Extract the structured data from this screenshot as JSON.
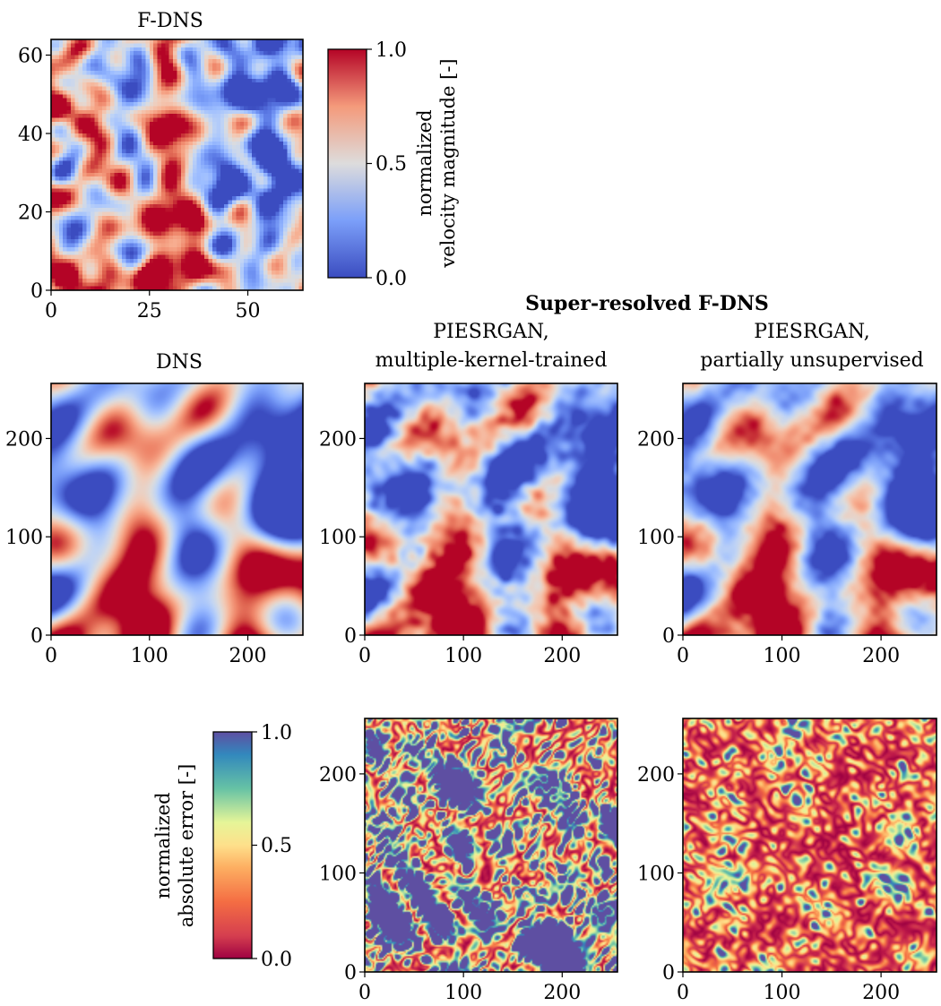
{
  "chart_data": [
    {
      "type": "heatmap",
      "id": "fdns",
      "title": "F-DNS",
      "grid_size": 64,
      "xlim": [
        0,
        64
      ],
      "ylim": [
        0,
        64
      ],
      "xticks": [
        0,
        25,
        50
      ],
      "yticks": [
        0,
        20,
        40,
        60
      ],
      "colormap": "coolwarm",
      "value_range": [
        0,
        1
      ]
    },
    {
      "type": "heatmap",
      "id": "dns",
      "title": "DNS",
      "grid_size": 256,
      "xlim": [
        0,
        256
      ],
      "ylim": [
        0,
        256
      ],
      "xticks": [
        0,
        100,
        200
      ],
      "yticks": [
        0,
        100,
        200
      ],
      "colormap": "coolwarm",
      "value_range": [
        0,
        1
      ]
    },
    {
      "type": "heatmap",
      "id": "sr_multi",
      "title_lines": [
        "PIESRGAN,",
        "multiple-kernel-trained"
      ],
      "grid_size": 256,
      "xlim": [
        0,
        256
      ],
      "ylim": [
        0,
        256
      ],
      "xticks": [
        0,
        100,
        200
      ],
      "yticks": [
        0,
        100,
        200
      ],
      "colormap": "coolwarm",
      "value_range": [
        0,
        1
      ]
    },
    {
      "type": "heatmap",
      "id": "sr_partial",
      "title_lines": [
        "PIESRGAN,",
        "partially unsupervised"
      ],
      "grid_size": 256,
      "xlim": [
        0,
        256
      ],
      "ylim": [
        0,
        256
      ],
      "xticks": [
        0,
        100,
        200
      ],
      "yticks": [
        0,
        100,
        200
      ],
      "colormap": "coolwarm",
      "value_range": [
        0,
        1
      ]
    },
    {
      "type": "heatmap",
      "id": "err_multi",
      "grid_size": 256,
      "xlim": [
        0,
        256
      ],
      "ylim": [
        0,
        256
      ],
      "xticks": [
        0,
        100,
        200
      ],
      "yticks": [
        0,
        100,
        200
      ],
      "colormap": "Spectral",
      "value_range": [
        0,
        1
      ]
    },
    {
      "type": "heatmap",
      "id": "err_partial",
      "grid_size": 256,
      "xlim": [
        0,
        256
      ],
      "ylim": [
        0,
        256
      ],
      "xticks": [
        0,
        100,
        200
      ],
      "yticks": [
        0,
        100,
        200
      ],
      "colormap": "Spectral",
      "value_range": [
        0,
        1
      ]
    }
  ],
  "suptitle": "Super-resolved F-DNS",
  "colorbars": {
    "velocity": {
      "label_lines": [
        "normalized",
        "velocity magnitude [-]"
      ],
      "ticks": [
        "0.0",
        "0.5",
        "1.0"
      ],
      "colors": [
        "#3b4cc0",
        "#dddcdc",
        "#b40426"
      ]
    },
    "error": {
      "label_lines": [
        "normalized",
        "absolute error [-]"
      ],
      "ticks": [
        "0.0",
        "0.5",
        "1.0"
      ],
      "colors": [
        "#9e0142",
        "#f46d43",
        "#fee08b",
        "#e6f598",
        "#66c2a5",
        "#3288bd",
        "#5e4fa2"
      ]
    }
  }
}
